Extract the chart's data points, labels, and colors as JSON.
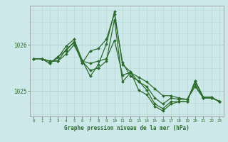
{
  "title": "Graphe pression niveau de la mer (hPa)",
  "bg_color": "#cce8e8",
  "grid_color_v": "#b8d8d8",
  "grid_color_h": "#b0cccc",
  "line_color": "#2d6b2d",
  "marker": "D",
  "marker_size": 2.0,
  "line_width": 0.9,
  "xlim": [
    -0.5,
    23.5
  ],
  "ylim": [
    1024.45,
    1026.85
  ],
  "yticks": [
    1025,
    1026
  ],
  "xticks": [
    0,
    1,
    2,
    3,
    4,
    5,
    6,
    7,
    8,
    9,
    10,
    11,
    12,
    13,
    14,
    15,
    16,
    17,
    18,
    19,
    20,
    21,
    22,
    23
  ],
  "xlabel_fontsize": 5.5,
  "xtick_fontsize": 4.2,
  "ytick_fontsize": 5.5,
  "series": [
    [
      1025.7,
      1025.7,
      1025.65,
      1025.65,
      1025.8,
      1026.0,
      1025.65,
      1025.6,
      1025.65,
      1025.7,
      1026.1,
      1025.35,
      1025.4,
      1025.3,
      1025.2,
      1025.05,
      1024.9,
      1024.9,
      1024.85,
      1024.82,
      1025.1,
      1024.85,
      1024.85,
      1024.78
    ],
    [
      1025.7,
      1025.7,
      1025.65,
      1025.65,
      1025.9,
      1026.05,
      1025.65,
      1025.45,
      1025.5,
      1025.65,
      1026.55,
      1025.2,
      1025.4,
      1025.2,
      1025.1,
      1024.85,
      1024.72,
      1024.85,
      1024.82,
      1024.82,
      1025.15,
      1024.85,
      1024.85,
      1024.78
    ],
    [
      1025.7,
      1025.7,
      1025.6,
      1025.75,
      1025.87,
      1026.07,
      1025.6,
      1025.87,
      1025.92,
      1026.12,
      1026.67,
      1025.62,
      1025.32,
      1025.22,
      1025.02,
      1024.72,
      1024.62,
      1024.77,
      1024.77,
      1024.77,
      1025.22,
      1024.87,
      1024.87,
      1024.77
    ],
    [
      1025.7,
      1025.7,
      1025.6,
      1025.72,
      1025.97,
      1026.12,
      1025.67,
      1025.32,
      1025.57,
      1026.02,
      1026.72,
      1025.57,
      1025.42,
      1025.02,
      1024.92,
      1024.67,
      1024.57,
      1024.72,
      1024.77,
      1024.77,
      1025.22,
      1024.87,
      1024.87,
      1024.77
    ]
  ]
}
